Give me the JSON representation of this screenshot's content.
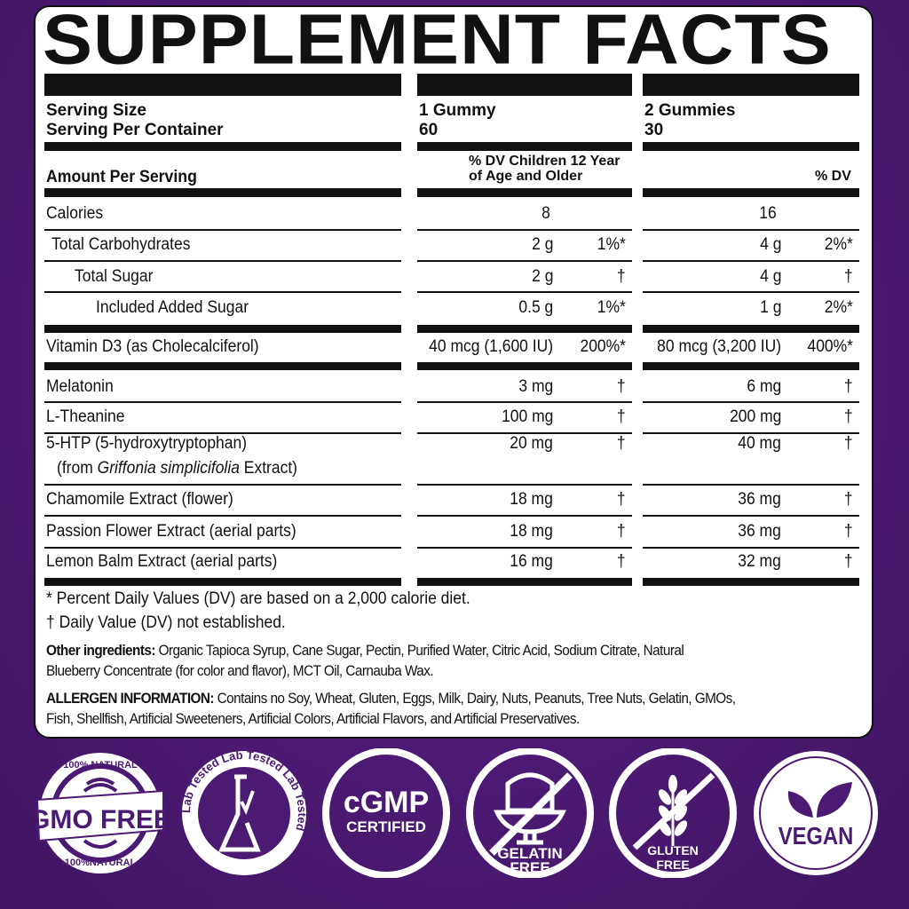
{
  "title": "SUPPLEMENT FACTS",
  "serving": {
    "size_label": "Serving Size",
    "per_container_label": "Serving Per Container",
    "col1_size": "1 Gummy",
    "col1_count": "60",
    "col2_size": "2 Gummies",
    "col2_count": "30"
  },
  "header": {
    "amount_label": "Amount Per Serving",
    "col1_dv_line1": "% DV Children 12 Year",
    "col1_dv_line2": "of Age and Older",
    "col2_dv": "% DV"
  },
  "rows": [
    {
      "name": "Calories",
      "c1_amount": "8",
      "c1_dv": "",
      "c2_amount": "16",
      "c2_dv": ""
    },
    {
      "name": "Total Carbohydrates",
      "c1_amount": "2 g",
      "c1_dv": "1%*",
      "c2_amount": "4 g",
      "c2_dv": "2%*"
    },
    {
      "name": "Total Sugar",
      "c1_amount": "2 g",
      "c1_dv": "†",
      "c2_amount": "4 g",
      "c2_dv": "†"
    },
    {
      "name": "Included Added Sugar",
      "c1_amount": "0.5 g",
      "c1_dv": "1%*",
      "c2_amount": "1 g",
      "c2_dv": "2%*"
    },
    {
      "name": "Vitamin D3 (as Cholecalciferol)",
      "c1_amount": "40 mcg (1,600 IU)",
      "c1_dv": "200%*",
      "c2_amount": "80 mcg (3,200 IU)",
      "c2_dv": "400%*"
    },
    {
      "name": "Melatonin",
      "c1_amount": "3 mg",
      "c1_dv": "†",
      "c2_amount": "6 mg",
      "c2_dv": "†"
    },
    {
      "name": "L-Theanine",
      "c1_amount": "100 mg",
      "c1_dv": "†",
      "c2_amount": "200 mg",
      "c2_dv": "†"
    },
    {
      "name": "5-HTP (5-hydroxytryptophan)",
      "sub_pre": "(from ",
      "sub_italic": "Griffonia simplicifolia",
      "sub_post": " Extract)",
      "c1_amount": "20 mg",
      "c1_dv": "†",
      "c2_amount": "40 mg",
      "c2_dv": "†"
    },
    {
      "name": "Chamomile Extract (flower)",
      "c1_amount": "18 mg",
      "c1_dv": "†",
      "c2_amount": "36 mg",
      "c2_dv": "†"
    },
    {
      "name": "Passion Flower Extract (aerial parts)",
      "c1_amount": "18 mg",
      "c1_dv": "†",
      "c2_amount": "36 mg",
      "c2_dv": "†"
    },
    {
      "name": "Lemon Balm Extract (aerial parts)",
      "c1_amount": "16 mg",
      "c1_dv": "†",
      "c2_amount": "32 mg",
      "c2_dv": "†"
    }
  ],
  "footnotes": {
    "dv_note": "* Percent Daily Values (DV) are based on a 2,000 calorie diet.",
    "not_established": "† Daily Value (DV) not established."
  },
  "other_ingredients": {
    "label": "Other ingredients:",
    "line1": " Organic Tapioca Syrup, Cane Sugar, Pectin, Purified Water, Citric Acid, Sodium Citrate, Natural",
    "line2": "Blueberry Concentrate (for color and flavor), MCT Oil, Carnauba Wax."
  },
  "allergen": {
    "label": "ALLERGEN INFORMATION:",
    "line1": " Contains no Soy, Wheat, Gluten, Eggs, Milk, Dairy, Nuts, Peanuts, Tree Nuts, Gelatin, GMOs,",
    "line2": "Fish, Shellfish, Artificial Sweeteners, Artificial Colors, Artificial Flavors, and Artificial Preservatives."
  },
  "badges": {
    "gmo": {
      "top": "100% NATURAL",
      "main": "GMO FREE",
      "bottom": "100%NATURAL",
      "icon": "wheat-icon"
    },
    "lab": {
      "ring": "Lab Tested  Lab Tested  Lab Tested",
      "icon": "flask-check-icon"
    },
    "cgmp": {
      "line1": "cGMP",
      "line2": "CERTIFIED"
    },
    "gelatin": {
      "line1": "GELATIN",
      "line2": "FREE",
      "icon": "jelly-crossed-icon"
    },
    "gluten": {
      "line1": "GLUTEN",
      "line2": "FREE",
      "icon": "wheat-crossed-icon"
    },
    "vegan": {
      "label": "VEGAN",
      "icon": "leaf-icon"
    }
  },
  "colors": {
    "background": "#4b1a73",
    "panel": "#ffffff",
    "ink": "#111111",
    "badge": "#ffffff"
  }
}
